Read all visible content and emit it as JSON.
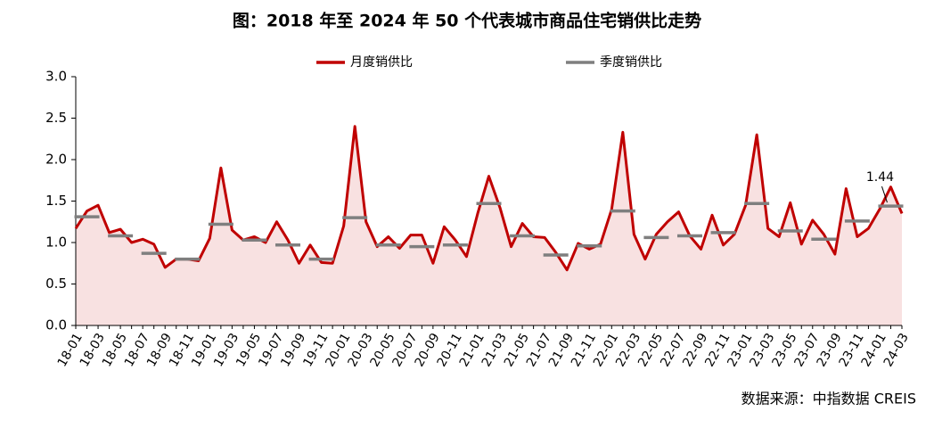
{
  "chart_data": {
    "type": "line",
    "title": "图：2018 年至 2024 年 50 个代表城市商品住宅销供比走势",
    "source": "数据来源：中指数据 CREIS",
    "categories": [
      "18-01",
      null,
      "18-03",
      null,
      "18-05",
      null,
      "18-07",
      null,
      "18-09",
      null,
      "18-11",
      null,
      "19-01",
      null,
      "19-03",
      null,
      "19-05",
      null,
      "19-07",
      null,
      "19-09",
      null,
      "19-11",
      null,
      "20-01",
      null,
      "20-03",
      null,
      "20-05",
      null,
      "20-07",
      null,
      "20-09",
      null,
      "20-11",
      null,
      "21-01",
      null,
      "21-03",
      null,
      "21-05",
      null,
      "21-07",
      null,
      "21-09",
      null,
      "21-11",
      null,
      "22-01",
      null,
      "22-03",
      null,
      "22-05",
      null,
      "22-07",
      null,
      "22-09",
      null,
      "22-11",
      null,
      "23-01",
      null,
      "23-03",
      null,
      "23-05",
      null,
      "23-07",
      null,
      "23-09",
      null,
      "23-11",
      null,
      "24-01",
      null,
      "24-03"
    ],
    "series": [
      {
        "name": "月度销供比",
        "color": "#c00000",
        "style": "line",
        "fill": "#f8e1e1",
        "values": [
          1.17,
          1.38,
          1.45,
          1.12,
          1.16,
          1.0,
          1.04,
          0.98,
          0.7,
          0.8,
          0.8,
          0.78,
          1.05,
          1.9,
          1.15,
          1.03,
          1.07,
          1.0,
          1.25,
          1.03,
          0.75,
          0.97,
          0.76,
          0.75,
          1.2,
          2.4,
          1.25,
          0.95,
          1.07,
          0.93,
          1.09,
          1.09,
          0.75,
          1.19,
          1.03,
          0.83,
          1.35,
          1.8,
          1.42,
          0.95,
          1.23,
          1.07,
          1.06,
          0.88,
          0.67,
          0.99,
          0.92,
          0.98,
          1.4,
          2.33,
          1.1,
          0.8,
          1.1,
          1.25,
          1.37,
          1.08,
          0.92,
          1.33,
          0.97,
          1.1,
          1.45,
          2.3,
          1.17,
          1.07,
          1.48,
          0.98,
          1.27,
          1.1,
          0.86,
          1.65,
          1.07,
          1.17,
          1.4,
          1.67,
          1.35
        ]
      },
      {
        "name": "季度销供比",
        "color": "#7f7f7f",
        "style": "dash",
        "values": [
          null,
          1.31,
          null,
          null,
          1.08,
          null,
          null,
          0.87,
          null,
          null,
          0.8,
          null,
          null,
          1.22,
          null,
          null,
          1.03,
          null,
          null,
          0.97,
          null,
          null,
          0.8,
          null,
          null,
          1.3,
          null,
          null,
          0.97,
          null,
          null,
          0.95,
          null,
          null,
          0.97,
          null,
          null,
          1.47,
          null,
          null,
          1.08,
          null,
          null,
          0.85,
          null,
          null,
          0.96,
          null,
          null,
          1.38,
          null,
          null,
          1.06,
          null,
          null,
          1.08,
          null,
          null,
          1.12,
          null,
          null,
          1.47,
          null,
          null,
          1.14,
          null,
          null,
          1.04,
          null,
          null,
          1.26,
          null,
          null,
          1.44,
          null
        ]
      }
    ],
    "annotations": [
      {
        "series": 1,
        "index": 73
      }
    ],
    "ylim": [
      0,
      3
    ],
    "yticks": [
      {
        "value": 0,
        "label": "0.0"
      },
      0.5,
      {
        "value": 1,
        "label": "1.0"
      },
      1.5,
      {
        "value": 2,
        "label": "2.0"
      },
      2.5,
      {
        "value": 3,
        "label": "3.0"
      }
    ],
    "legend": "top"
  }
}
